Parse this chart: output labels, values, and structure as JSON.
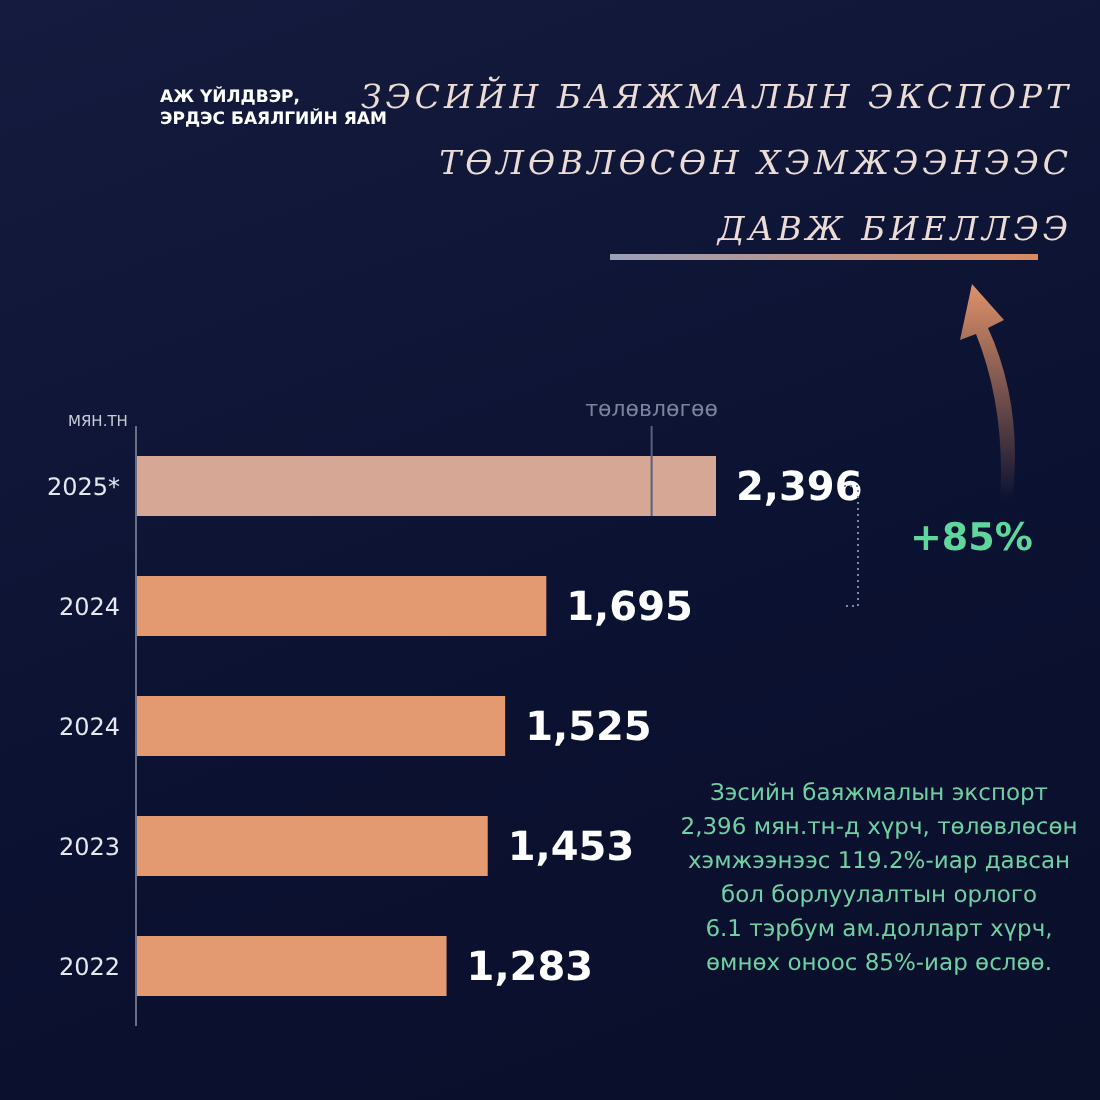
{
  "chart_data": {
    "type": "bar",
    "orientation": "horizontal",
    "title": "ЗЭСИЙН БАЯЖМАЛЫН ЭКСПОРТ\nТӨЛӨВЛӨСӨН ХЭМЖЭЭНЭЭС\nДАВЖ БИЕЛЛЭЭ",
    "ylabel": "МЯН.ТН",
    "categories": [
      "2025*",
      "2024",
      "2024",
      "2023",
      "2022"
    ],
    "values": [
      2396,
      1695,
      1525,
      1453,
      1283
    ],
    "colors": [
      "#d6a794",
      "#e49a70",
      "#e49a70",
      "#e49a70",
      "#e49a70"
    ],
    "value_labels": [
      "2,396",
      "1,695",
      "1,525",
      "1,453",
      "1,283"
    ],
    "tick_labels": "y",
    "grid": false,
    "legend": false,
    "ref_lines": [
      {
        "axis": "x",
        "value": 2130,
        "label": "төлөвлөгөө",
        "color": "#5a6080"
      }
    ],
    "annotations": [
      "АЖ ҮЙЛДВЭР,\nЭРДЭС БАЯЛГИЙН ЯАМ",
      "+85%",
      "Зэсийн баяжмалын экспорт\n2,396 мян.тн-д хүрч, төлөвлөсөн\nхэмжээнээс 119.2%-иар давсан\nбол борлуулалтын орлого\n6.1 тэрбум ам.долларт хүрч,\nөмнөх оноос 85%-иар өслөө."
    ]
  }
}
